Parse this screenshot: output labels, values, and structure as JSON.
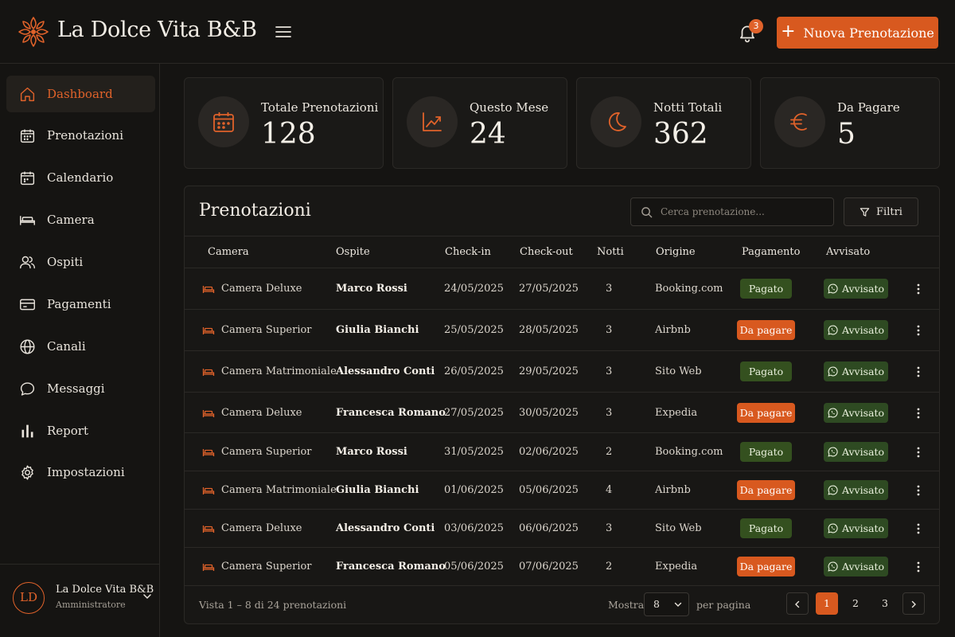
{
  "header": {
    "brand": "La Dolce Vita B&B",
    "notifications_count": "3",
    "new_booking_label": "Nuova Prenotazione"
  },
  "sidebar": {
    "items": [
      {
        "label": "Dashboard",
        "icon": "home-icon",
        "active": true
      },
      {
        "label": "Prenotazioni",
        "icon": "calendar-grid-icon"
      },
      {
        "label": "Calendario",
        "icon": "calendar-icon"
      },
      {
        "label": "Camera",
        "icon": "bed-icon"
      },
      {
        "label": "Ospiti",
        "icon": "users-icon"
      },
      {
        "label": "Pagamenti",
        "icon": "card-icon"
      },
      {
        "label": "Canali",
        "icon": "globe-icon"
      },
      {
        "label": "Messaggi",
        "icon": "chat-icon"
      },
      {
        "label": "Report",
        "icon": "bar-chart-icon"
      },
      {
        "label": "Impostazioni",
        "icon": "gear-icon"
      }
    ],
    "user": {
      "initials": "LD",
      "name": "La Dolce Vita B&B",
      "role": "Amministratore"
    }
  },
  "stats": [
    {
      "label": "Totale Prenotazioni",
      "value": "128",
      "icon": "calendar-icon"
    },
    {
      "label": "Questo Mese",
      "value": "24",
      "icon": "trend-up-icon"
    },
    {
      "label": "Notti Totali",
      "value": "362",
      "icon": "moon-icon"
    },
    {
      "label": "Da Pagare",
      "value": "5",
      "icon": "euro-icon"
    }
  ],
  "table": {
    "title": "Prenotazioni",
    "search_placeholder": "Cerca prenotazione...",
    "filter_label": "Filtri",
    "columns": [
      "Camera",
      "Ospite",
      "Check-in",
      "Check-out",
      "Notti",
      "Origine",
      "Pagamento",
      "Avvisato"
    ],
    "rows": [
      {
        "camera": "Camera Deluxe",
        "ospite": "Marco Rossi",
        "checkin": "24/05/2025",
        "checkout": "27/05/2025",
        "notti": "3",
        "origine": "Booking.com",
        "pagamento": "Pagato",
        "avvisato": "Avvisato"
      },
      {
        "camera": "Camera Superior",
        "ospite": "Giulia Bianchi",
        "checkin": "25/05/2025",
        "checkout": "28/05/2025",
        "notti": "3",
        "origine": "Airbnb",
        "pagamento": "Da pagare",
        "avvisato": "Avvisato"
      },
      {
        "camera": "Camera Matrimoniale",
        "ospite": "Alessandro Conti",
        "checkin": "26/05/2025",
        "checkout": "29/05/2025",
        "notti": "3",
        "origine": "Sito Web",
        "pagamento": "Pagato",
        "avvisato": "Avvisato"
      },
      {
        "camera": "Camera Deluxe",
        "ospite": "Francesca Romano",
        "checkin": "27/05/2025",
        "checkout": "30/05/2025",
        "notti": "3",
        "origine": "Expedia",
        "pagamento": "Da pagare",
        "avvisato": "Avvisato"
      },
      {
        "camera": "Camera Superior",
        "ospite": "Marco Rossi",
        "checkin": "31/05/2025",
        "checkout": "02/06/2025",
        "notti": "2",
        "origine": "Booking.com",
        "pagamento": "Pagato",
        "avvisato": "Avvisato"
      },
      {
        "camera": "Camera Matrimoniale",
        "ospite": "Giulia Bianchi",
        "checkin": "01/06/2025",
        "checkout": "05/06/2025",
        "notti": "4",
        "origine": "Airbnb",
        "pagamento": "Da pagare",
        "avvisato": "Avvisato"
      },
      {
        "camera": "Camera Deluxe",
        "ospite": "Alessandro Conti",
        "checkin": "03/06/2025",
        "checkout": "06/06/2025",
        "notti": "3",
        "origine": "Sito Web",
        "pagamento": "Pagato",
        "avvisato": "Avvisato"
      },
      {
        "camera": "Camera Superior",
        "ospite": "Francesca Romano",
        "checkin": "05/06/2025",
        "checkout": "07/06/2025",
        "notti": "2",
        "origine": "Expedia",
        "pagamento": "Da pagare",
        "avvisato": "Avvisato"
      }
    ],
    "footer": {
      "info": "Vista 1 – 8 di 24 prenotazioni",
      "show_label": "Mostra",
      "per_page_value": "8",
      "per_page_label": "per pagina",
      "pages": [
        "1",
        "2",
        "3"
      ],
      "current_page": "1"
    }
  },
  "colors": {
    "accent": "#d8591f",
    "paid": "#34501f",
    "notified": "#2e4a22",
    "background": "#151412"
  }
}
